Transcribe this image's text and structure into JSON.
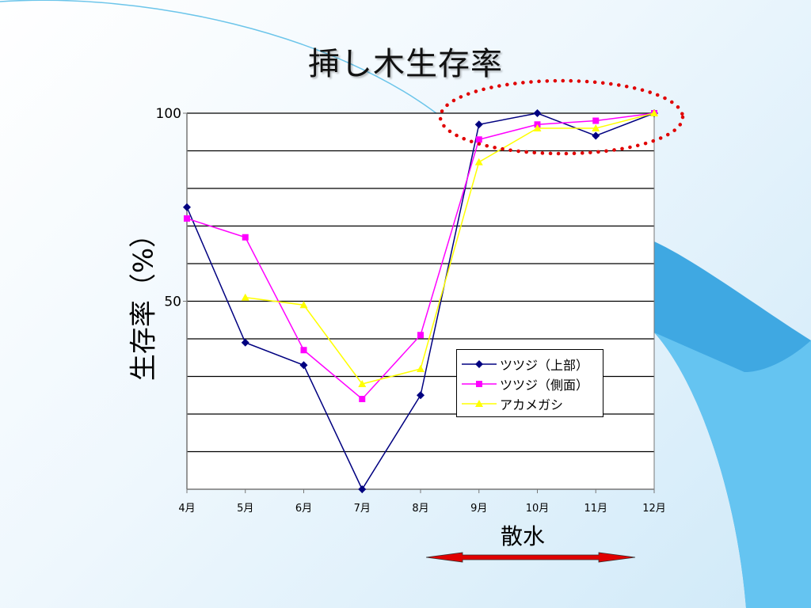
{
  "slide": {
    "title": "挿し木生存率",
    "y_axis_title": "生存率（%）",
    "x_axis_title": "散水"
  },
  "colors": {
    "series1": "#000080",
    "series2": "#ff00ff",
    "series3": "#ffff00",
    "highlight": "#e00000",
    "arrow": "#e00000"
  },
  "chart_data": {
    "type": "line",
    "categories": [
      "4月",
      "5月",
      "6月",
      "7月",
      "8月",
      "9月",
      "10月",
      "11月",
      "12月"
    ],
    "series": [
      {
        "name": "ツツジ（上部）",
        "values": [
          75,
          39,
          33,
          0,
          25,
          97,
          100,
          94,
          100
        ]
      },
      {
        "name": "ツツジ（側面）",
        "values": [
          72,
          67,
          37,
          24,
          41,
          93,
          97,
          98,
          100
        ]
      },
      {
        "name": "アカメガシ",
        "values": [
          null,
          51,
          49,
          28,
          32,
          87,
          96,
          96,
          100
        ]
      }
    ],
    "ylim": [
      0,
      100
    ],
    "yticks": [
      50,
      100
    ],
    "grid": true,
    "legend_position": "lower-right",
    "annotations": [
      "dotted-ellipse-around-9月-12月-peak",
      "double-arrow-under-散水"
    ]
  }
}
